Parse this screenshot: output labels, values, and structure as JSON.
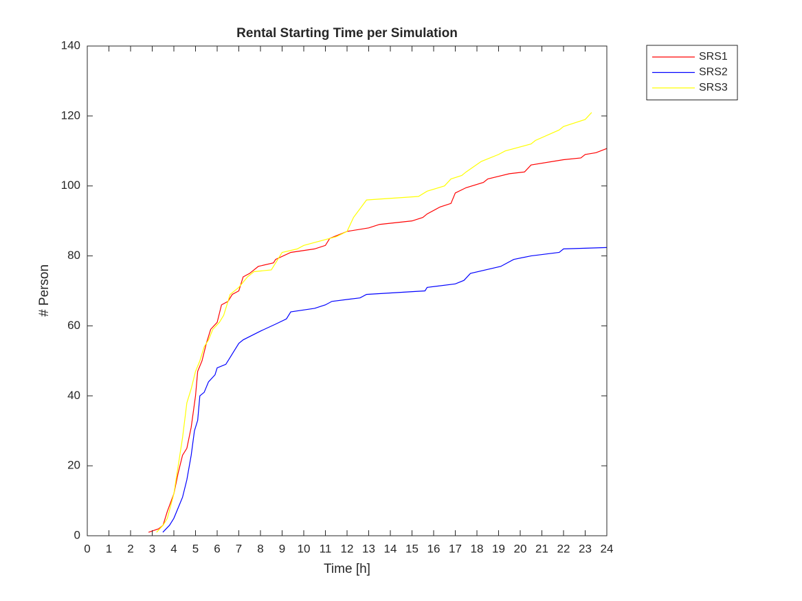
{
  "chart_data": {
    "type": "line",
    "title": "Rental Starting Time per Simulation",
    "xlabel": "Time [h]",
    "ylabel": "# Person",
    "xlim": [
      0,
      24
    ],
    "ylim": [
      0,
      140
    ],
    "xticks": [
      0,
      1,
      2,
      3,
      4,
      5,
      6,
      7,
      8,
      9,
      10,
      11,
      12,
      13,
      14,
      15,
      16,
      17,
      18,
      19,
      20,
      21,
      22,
      23,
      24
    ],
    "yticks": [
      0,
      20,
      40,
      60,
      80,
      100,
      120,
      140
    ],
    "legend": "northeastoutside",
    "series": [
      {
        "name": "SRS1",
        "color": "#ff0000",
        "x": [
          2.83,
          3.3,
          3.5,
          3.7,
          4,
          4.2,
          4.4,
          4.6,
          4.8,
          5,
          5.1,
          5.3,
          5.5,
          5.7,
          6,
          6.2,
          6.5,
          6.7,
          7,
          7.2,
          7.5,
          7.9,
          8.6,
          8.7,
          9.4,
          10.5,
          11,
          11.2,
          12,
          13,
          13.5,
          15,
          15.5,
          15.7,
          16.3,
          16.8,
          17,
          17.5,
          18.3,
          18.5,
          19.5,
          20.2,
          20.5,
          22,
          22.8,
          23,
          23.5,
          24
        ],
        "values": [
          1,
          2,
          3,
          7,
          12,
          18,
          23,
          25,
          31,
          40,
          47,
          50,
          55,
          59,
          61,
          66,
          67,
          69,
          70,
          74,
          75,
          77,
          78,
          79,
          81,
          82,
          83,
          85,
          87,
          88,
          89,
          90,
          91,
          92,
          94,
          95,
          98,
          99.5,
          101,
          102,
          103.5,
          104,
          106,
          107.5,
          108,
          109,
          109.5,
          110.7
        ]
      },
      {
        "name": "SRS2",
        "color": "#0000ff",
        "x": [
          3.49,
          3.8,
          4,
          4.2,
          4.4,
          4.6,
          4.8,
          4.95,
          5.1,
          5.2,
          5.4,
          5.6,
          5.9,
          6,
          6.4,
          6.6,
          6.8,
          7,
          7.2,
          8,
          8.7,
          9.2,
          9.4,
          10.5,
          11,
          11.3,
          12.6,
          12.9,
          15.6,
          15.7,
          17,
          17.4,
          17.7,
          19.1,
          19.7,
          20.5,
          21.8,
          22,
          24
        ],
        "values": [
          1,
          3,
          5,
          8,
          11,
          16,
          23,
          30,
          33,
          40,
          41,
          44,
          46,
          48,
          49,
          51,
          53,
          55,
          56,
          58.5,
          60.5,
          62,
          64,
          65,
          66,
          67,
          68,
          69,
          70,
          71,
          72,
          73,
          75,
          77,
          79,
          80,
          81,
          82,
          82.4
        ]
      },
      {
        "name": "SRS3",
        "color": "#ffff00",
        "x": [
          3.2,
          3.5,
          3.7,
          4,
          4.2,
          4.4,
          4.6,
          4.8,
          5,
          5.2,
          5.4,
          5.6,
          5.8,
          6.1,
          6.3,
          6.6,
          7,
          7.4,
          7.7,
          8.5,
          8.7,
          9,
          9.7,
          10,
          11.5,
          12,
          12.3,
          12.9,
          15.3,
          15.7,
          16.5,
          16.8,
          17.3,
          17.5,
          18.2,
          19,
          19.3,
          20.5,
          20.7,
          21.8,
          22,
          23,
          23.3
        ],
        "values": [
          1,
          3,
          5,
          12,
          20,
          28,
          38,
          42,
          47,
          50,
          54,
          56,
          59,
          61,
          63,
          69,
          71,
          74,
          75.5,
          76,
          78,
          81,
          82,
          83,
          85.5,
          87,
          91,
          96,
          97,
          98.5,
          100,
          102,
          103,
          104,
          107,
          109,
          110,
          112,
          113,
          116,
          117,
          119,
          121
        ]
      }
    ]
  }
}
